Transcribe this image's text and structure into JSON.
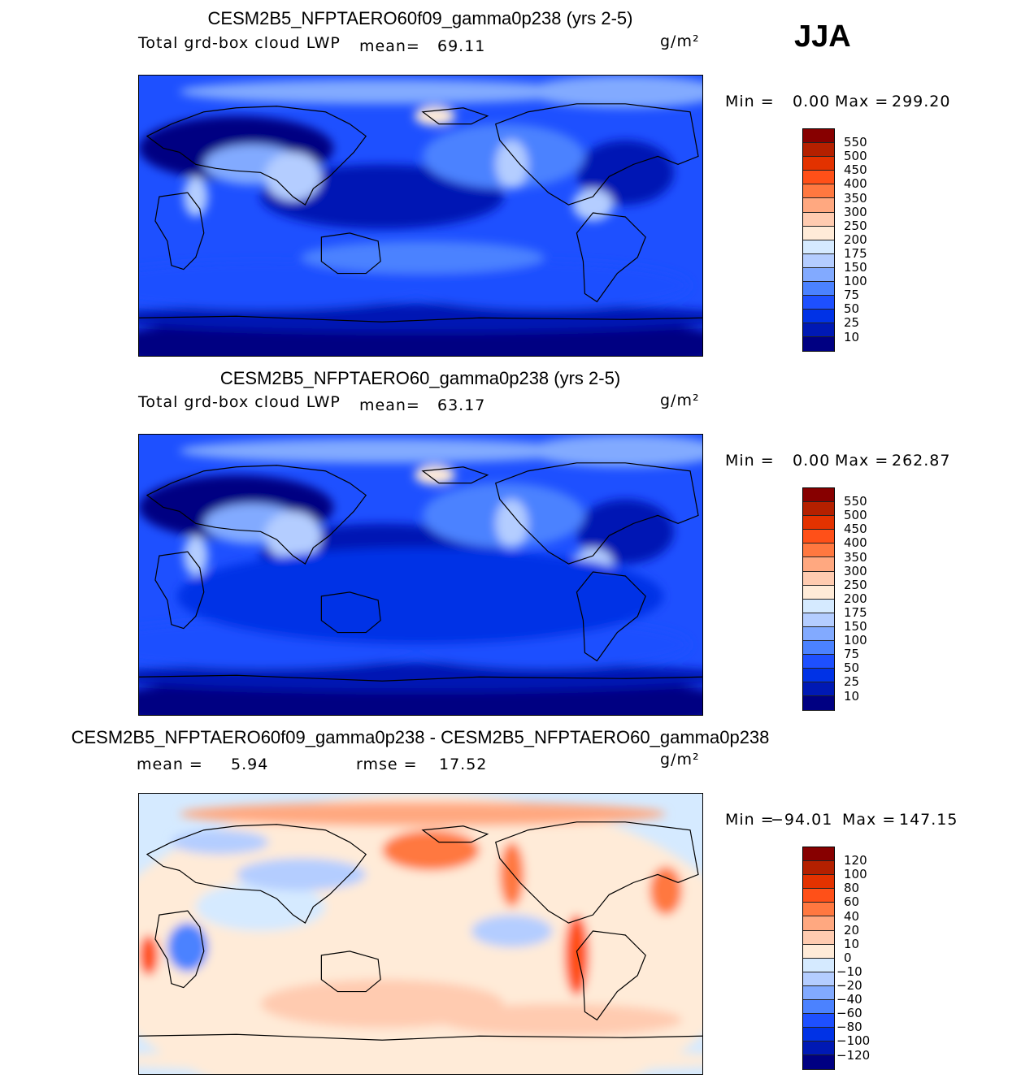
{
  "season": "JJA",
  "units": "g/m²",
  "colors": [
    "#870000",
    "#b42000",
    "#e33200",
    "#ff5018",
    "#ff7840",
    "#ffa880",
    "#ffcbb0",
    "#ffebd8",
    "#d5eaff",
    "#b4cdff",
    "#82aaff",
    "#4b82ff",
    "#1e50ff",
    "#0032e6",
    "#0019b4",
    "#000082"
  ],
  "panels": [
    {
      "title": "CESM2B5_NFPTAERO60f09_gamma0p238 (yrs 2-5)",
      "variable": "Total grd-box cloud LWP",
      "stat1_label": "mean=",
      "stat1_value": "69.11",
      "stat2_label": "",
      "stat2_value": "",
      "min_label": "Min =",
      "min_value": "0.00",
      "max_label": "Max =",
      "max_value": "299.20",
      "levels": [
        "550",
        "500",
        "450",
        "400",
        "350",
        "300",
        "250",
        "200",
        "175",
        "150",
        "100",
        "75",
        "50",
        "25",
        "10"
      ],
      "kind": "abs"
    },
    {
      "title": "CESM2B5_NFPTAERO60_gamma0p238 (yrs 2-5)",
      "variable": "Total grd-box cloud LWP",
      "stat1_label": "mean=",
      "stat1_value": "63.17",
      "stat2_label": "",
      "stat2_value": "",
      "min_label": "Min =",
      "min_value": "0.00",
      "max_label": "Max =",
      "max_value": "262.87",
      "levels": [
        "550",
        "500",
        "450",
        "400",
        "350",
        "300",
        "250",
        "200",
        "175",
        "150",
        "100",
        "75",
        "50",
        "25",
        "10"
      ],
      "kind": "abs"
    },
    {
      "title": "CESM2B5_NFPTAERO60f09_gamma0p238 - CESM2B5_NFPTAERO60_gamma0p238",
      "variable": "",
      "stat1_label": "mean =",
      "stat1_value": "5.94",
      "stat2_label": "rmse =",
      "stat2_value": "17.52",
      "min_label": "Min =",
      "min_value": "−94.01",
      "max_label": "Max =",
      "max_value": "147.15",
      "levels": [
        "120",
        "100",
        "80",
        "60",
        "40",
        "20",
        "10",
        "0",
        "−10",
        "−20",
        "−40",
        "−60",
        "−80",
        "−100",
        "−120"
      ],
      "kind": "diff"
    }
  ]
}
